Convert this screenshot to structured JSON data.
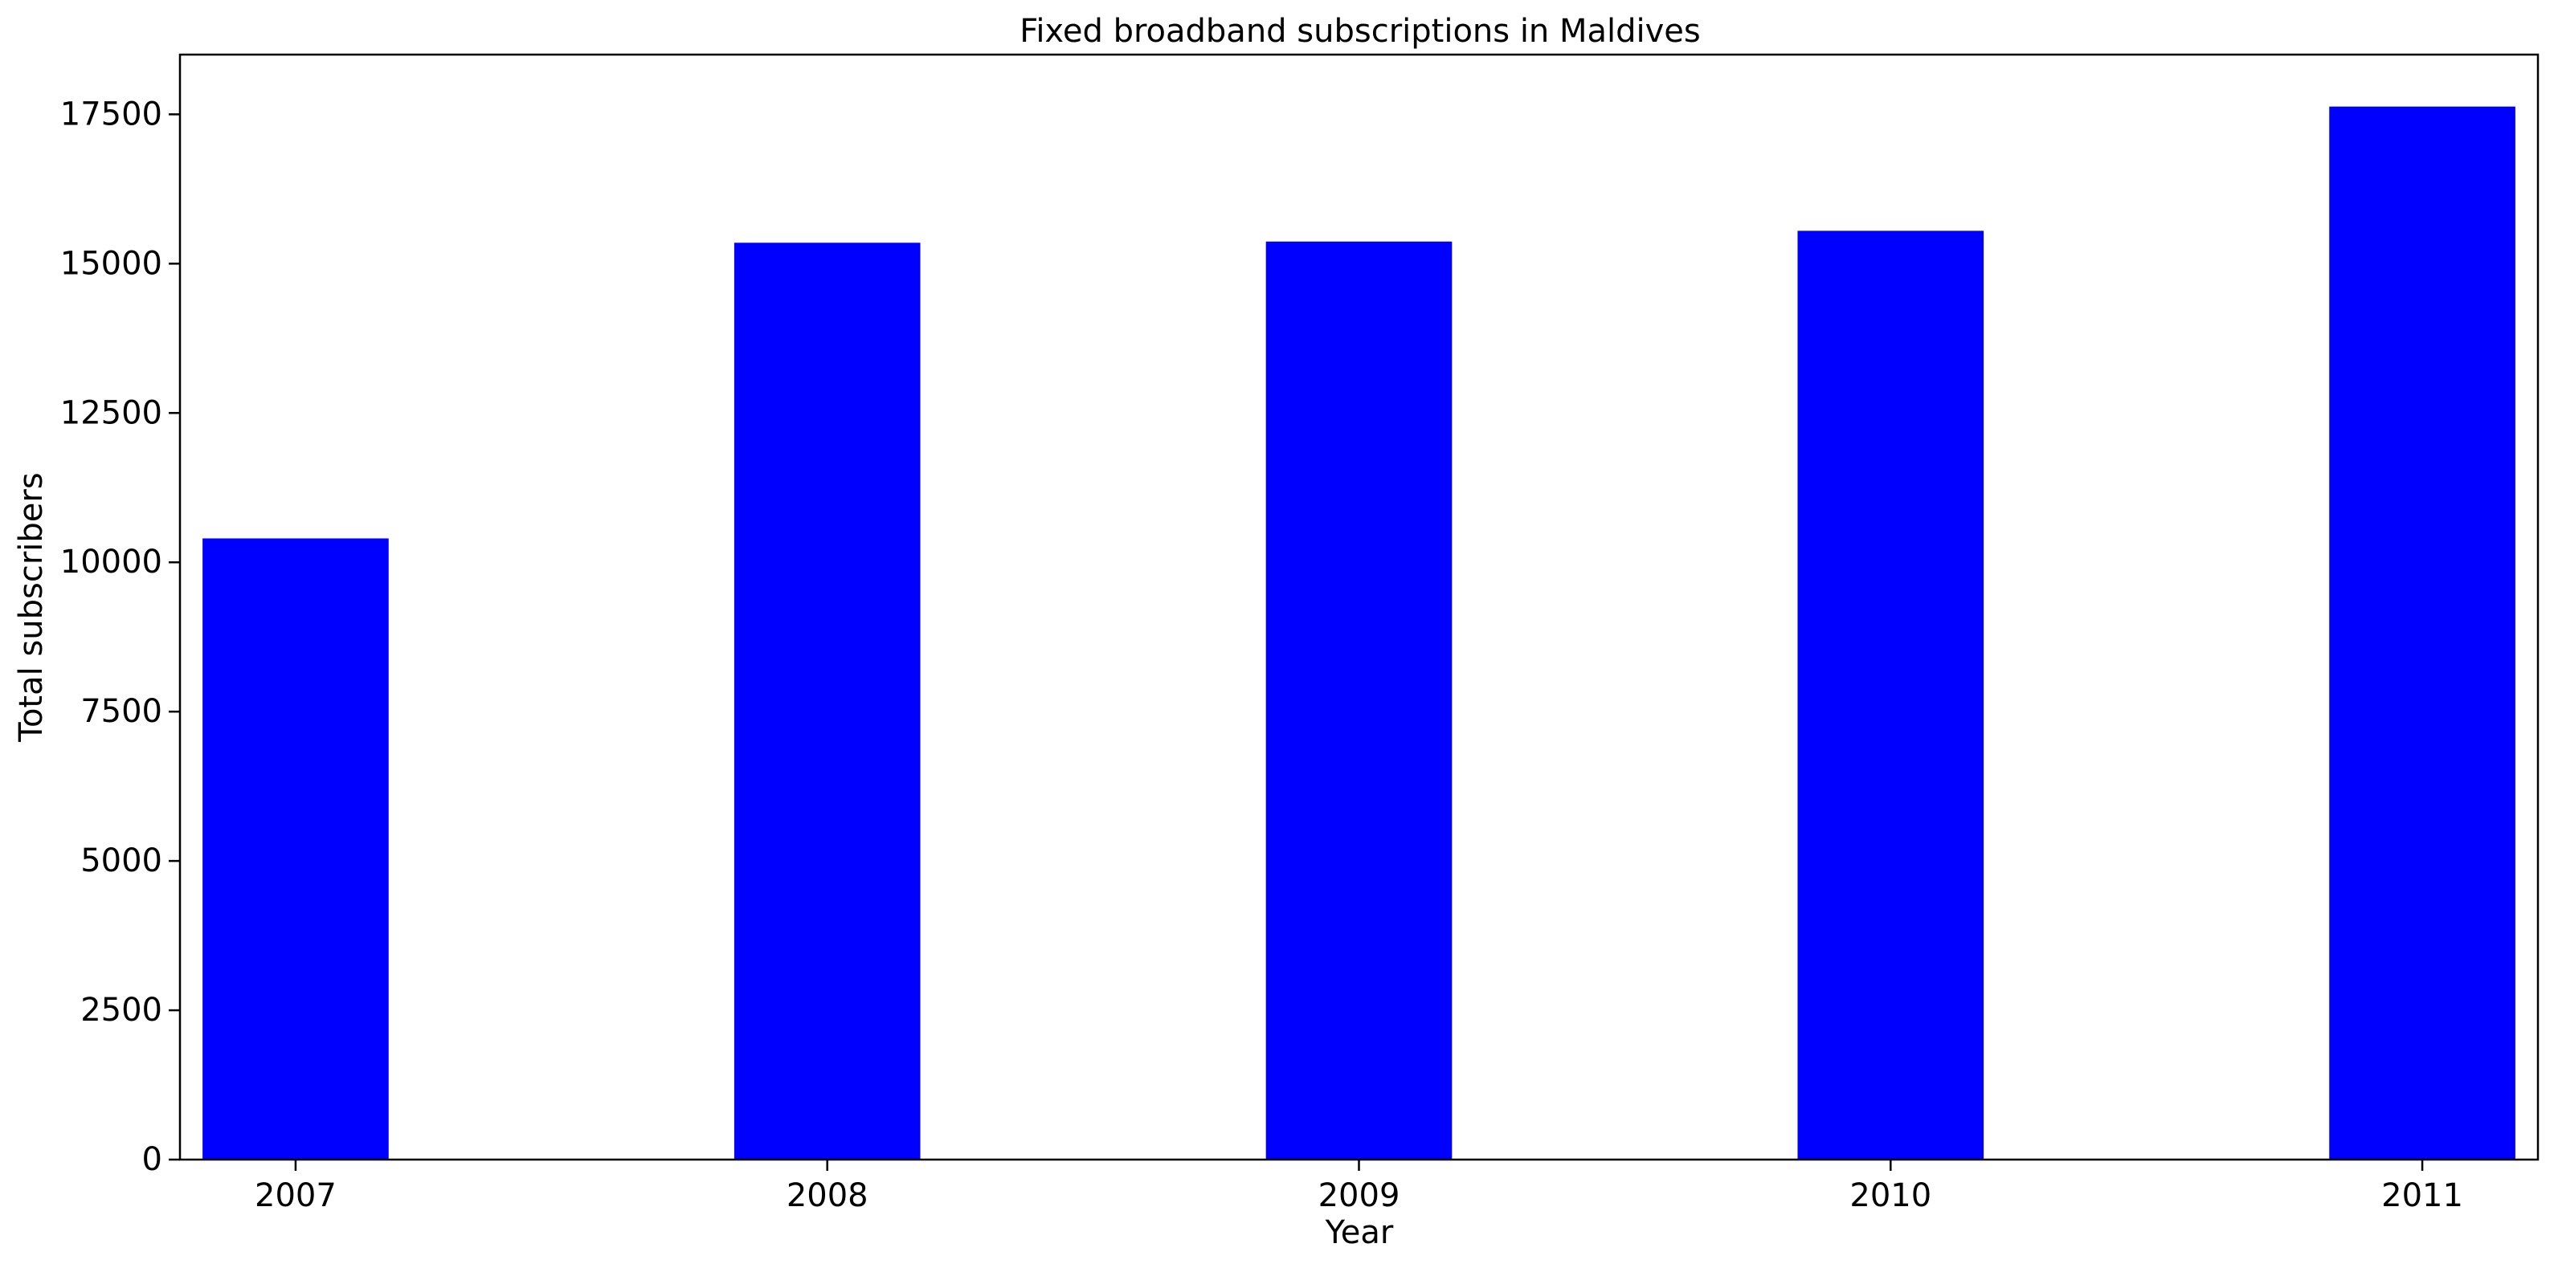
{
  "chart_data": {
    "type": "bar",
    "title": "Fixed broadband subscriptions in Maldives",
    "xlabel": "Year",
    "ylabel": "Total subscribers",
    "categories": [
      "2007",
      "2008",
      "2009",
      "2010",
      "2011"
    ],
    "values": [
      10400,
      15350,
      15370,
      15550,
      17630
    ],
    "ylim": [
      0,
      18500
    ],
    "yticks": [
      0,
      2500,
      5000,
      7500,
      10000,
      12500,
      15000,
      17500
    ],
    "ytick_labels": [
      "0",
      "2500",
      "5000",
      "7500",
      "10000",
      "12500",
      "15000",
      "17500"
    ],
    "bar_color": "#0000ff",
    "grid": false,
    "legend": "none"
  }
}
